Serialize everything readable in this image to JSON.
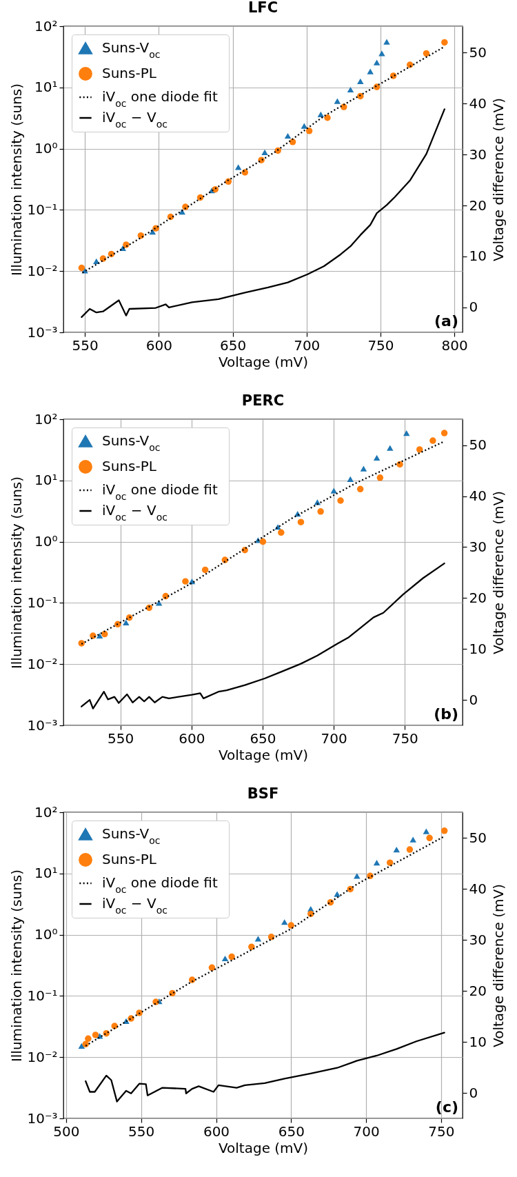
{
  "chart_data": [
    {
      "type": "scatter",
      "title": "LFC",
      "xlabel": "Voltage (mV)",
      "ylabel": "Illumination intensity (suns)",
      "y2label": "Voltage difference (mV)",
      "annotations": [
        "(a)"
      ],
      "log": "y",
      "grid": true,
      "legend": "top left",
      "xlim": [
        535.5,
        805.5
      ],
      "xticks": [
        550,
        600,
        650,
        700,
        750,
        800
      ],
      "ylim": [
        0.001,
        100
      ],
      "yticks": [
        {
          "value": 0.001,
          "label": "10⁻³"
        },
        {
          "value": 0.01,
          "label": "10⁻²"
        },
        {
          "value": 0.1,
          "label": "10⁻¹"
        },
        {
          "value": 1,
          "label": "10⁰"
        },
        {
          "value": 10,
          "label": "10¹"
        },
        {
          "value": 100,
          "label": "10²"
        }
      ],
      "y2lim": [
        -4.9,
        55.2
      ],
      "y2ticks": [
        0,
        10,
        20,
        30,
        40,
        50
      ],
      "series": [
        {
          "name": "Suns-V$_{oc}$",
          "type": "scatter",
          "marker": "triangle",
          "color": "#1f77b4",
          "x": [
            550,
            557.8,
            575.7,
            595.8,
            615.8,
            635.9,
            653.8,
            671.7,
            687.3,
            698.4,
            709.6,
            720.8,
            729.7,
            736.4,
            743.1,
            747.5,
            750.9,
            754.2
          ],
          "values": [
            0.0102,
            0.0145,
            0.0237,
            0.044,
            0.093,
            0.208,
            0.5,
            0.87,
            1.62,
            2.35,
            3.63,
            5.97,
            9.2,
            12.6,
            18.2,
            25.5,
            36,
            55.7
          ]
        },
        {
          "name": "Suns-PL",
          "type": "scatter",
          "marker": "circle",
          "color": "#ff7f0e",
          "x": [
            547.8,
            562.3,
            567.9,
            577.9,
            587.9,
            598,
            608,
            618,
            628.1,
            638.2,
            647.1,
            658.3,
            669.4,
            680.6,
            690.6,
            701.8,
            714.1,
            725.2,
            736.4,
            747.5,
            758.7,
            769.9,
            781,
            793.3
          ],
          "values": [
            0.0113,
            0.016,
            0.019,
            0.027,
            0.038,
            0.05,
            0.077,
            0.112,
            0.159,
            0.216,
            0.29,
            0.41,
            0.65,
            0.93,
            1.29,
            1.95,
            3.2,
            4.8,
            7.2,
            10.2,
            15.5,
            23.4,
            36,
            54.5
          ]
        },
        {
          "name": "iV$_{oc}$ one diode fit",
          "type": "line",
          "line_style": "dotted",
          "color": "#000000",
          "x": [
            548.4,
            589.1,
            644.9,
            678.3,
            711.8,
            756.5,
            793.3
          ],
          "values": [
            0.0094,
            0.0366,
            0.284,
            0.87,
            3.41,
            14.2,
            46.4
          ]
        },
        {
          "name": "iV$_{oc}$ − V$_{oc}$",
          "type": "line",
          "line_style": "solid",
          "axis": "y2",
          "color": "#000000",
          "x": [
            547.8,
            553.3,
            557.8,
            562.3,
            573,
            577.9,
            580.1,
            598,
            604.7,
            606.9,
            622.5,
            640.4,
            658.3,
            673.9,
            687.3,
            700.7,
            711.8,
            723,
            729.7,
            736.4,
            743.1,
            747.5,
            754.2,
            759.8,
            769.9,
            781,
            793.3
          ],
          "values": [
            -1.9,
            -0.3,
            -1.0,
            -0.8,
            1.4,
            -1.6,
            -0.3,
            -0.1,
            0.6,
            0,
            1.0,
            1.6,
            2.9,
            3.9,
            4.9,
            6.5,
            8.1,
            10.4,
            12.0,
            14.2,
            16.2,
            18.5,
            20.1,
            21.7,
            24.9,
            30.1,
            38.9
          ]
        }
      ]
    },
    {
      "type": "scatter",
      "title": "PERC",
      "xlabel": "Voltage (mV)",
      "ylabel": "Illumination intensity (suns)",
      "y2label": "Voltage difference (mV)",
      "annotations": [
        "(b)"
      ],
      "log": "y",
      "grid": true,
      "legend": "top left",
      "xlim": [
        509.9,
        790.6
      ],
      "xticks": [
        550,
        600,
        650,
        700,
        750
      ],
      "ylim": [
        0.001,
        100
      ],
      "yticks": [
        {
          "value": 0.001,
          "label": "10⁻³"
        },
        {
          "value": 0.01,
          "label": "10⁻²"
        },
        {
          "value": 0.1,
          "label": "10⁻¹"
        },
        {
          "value": 1,
          "label": "10⁰"
        },
        {
          "value": 10,
          "label": "10¹"
        },
        {
          "value": 100,
          "label": "10²"
        }
      ],
      "y2lim": [
        -5,
        55.1
      ],
      "y2ticks": [
        0,
        10,
        20,
        30,
        40,
        50
      ],
      "series": [
        {
          "name": "Suns-V$_{oc}$",
          "type": "scatter",
          "marker": "triangle",
          "color": "#1f77b4",
          "x": [
            535.4,
            553.9,
            577.1,
            600.3,
            623.5,
            646.8,
            660.7,
            674.6,
            688.5,
            700.1,
            711.7,
            721,
            730.3,
            739.6,
            751.2
          ],
          "values": [
            0.0291,
            0.0477,
            0.1,
            0.225,
            null,
            1.06,
            1.74,
            2.85,
            4.4,
            6.8,
            10.5,
            15.6,
            23.5,
            34,
            59.4
          ]
        },
        {
          "name": "Suns-PL",
          "type": "scatter",
          "marker": "circle",
          "color": "#ff7f0e",
          "x": [
            522.6,
            530.7,
            538.9,
            548.1,
            556.3,
            570.2,
            581.8,
            595.7,
            609.6,
            623.5,
            637.5,
            650.2,
            663,
            676.9,
            690.8,
            704.8,
            718.7,
            732.6,
            746.5,
            760.4,
            769.7,
            777.8
          ],
          "values": [
            0.0219,
            0.0291,
            0.031,
            0.0449,
            0.0575,
            0.0834,
            0.129,
            0.225,
            0.347,
            0.503,
            0.73,
            1.0,
            1.41,
            2.09,
            3.11,
            4.69,
            7.23,
            11.1,
            18.3,
            32,
            44.7,
            59.4
          ]
        },
        {
          "name": "iV$_{oc}$ one diode fit",
          "type": "line",
          "line_style": "dotted",
          "color": "#000000",
          "x": [
            522.6,
            600.3,
            670,
            716.4,
            777.8
          ],
          "values": [
            0.0213,
            0.211,
            2.37,
            9.27,
            43.5
          ]
        },
        {
          "name": "iV$_{oc}$ − V$_{oc}$",
          "type": "line",
          "line_style": "solid",
          "axis": "y2",
          "color": "#000000",
          "x": [
            522.6,
            528.4,
            530.7,
            538.4,
            541.2,
            545.8,
            548.8,
            554.6,
            558.6,
            563.2,
            566.7,
            570.2,
            574.1,
            579.5,
            584.1,
            600.3,
            606.1,
            608.4,
            618.9,
            624.7,
            637.5,
            651.4,
            663,
            676.9,
            688.5,
            702.4,
            710.6,
            716.4,
            728,
            734.9,
            748.8,
            762.8,
            777.8
          ],
          "values": [
            -1.3,
            0,
            -1.7,
            1.6,
            0.1,
            0.6,
            -0.6,
            1.1,
            -0.5,
            0.6,
            -0.3,
            0.6,
            -0.5,
            0.6,
            0.3,
            1.0,
            1.3,
            0.3,
            1.6,
            1.9,
            2.9,
            4.2,
            5.5,
            7.1,
            8.7,
            11.0,
            12.3,
            13.6,
            16.2,
            17.1,
            20.7,
            23.9,
            26.8
          ]
        }
      ]
    },
    {
      "type": "scatter",
      "title": "BSF",
      "xlabel": "Voltage (mV)",
      "ylabel": "Illumination intensity (suns)",
      "y2label": "Voltage difference (mV)",
      "annotations": [
        "(c)"
      ],
      "log": "y",
      "grid": true,
      "legend": "top left",
      "xlim": [
        498.2,
        764.3
      ],
      "xticks": [
        500,
        550,
        600,
        650,
        700,
        750
      ],
      "ylim": [
        0.001,
        100
      ],
      "yticks": [
        {
          "value": 0.001,
          "label": "10⁻³"
        },
        {
          "value": 0.01,
          "label": "10⁻²"
        },
        {
          "value": 0.1,
          "label": "10⁻¹"
        },
        {
          "value": 1,
          "label": "10⁰"
        },
        {
          "value": 10,
          "label": "10¹"
        },
        {
          "value": 100,
          "label": "10²"
        }
      ],
      "y2lim": [
        -5,
        55
      ],
      "y2ticks": [
        0,
        10,
        20,
        30,
        40,
        50
      ],
      "series": [
        {
          "name": "Suns-V$_{oc}$",
          "type": "scatter",
          "marker": "triangle",
          "color": "#1f77b4",
          "x": [
            510.3,
            522.4,
            540,
            562,
            584,
            606,
            628,
            645.6,
            663.1,
            680.7,
            693.9,
            707.1,
            720.3,
            731.3,
            740.1
          ],
          "values": [
            0.0153,
            0.0222,
            0.0388,
            0.0818,
            null,
            0.41,
            0.863,
            1.61,
            2.64,
            4.61,
            9.12,
            15.0,
            24.6,
            35.7,
            48.8
          ]
        },
        {
          "name": "Suns-PL",
          "type": "scatter",
          "marker": "circle",
          "color": "#ff7f0e",
          "x": [
            513,
            514.7,
            519.6,
            526.8,
            532.3,
            543.3,
            548.8,
            559.8,
            570.8,
            584,
            597.2,
            610.4,
            623.6,
            636.8,
            650,
            663.1,
            676.3,
            689.5,
            702.7,
            715.9,
            729.1,
            742.3,
            752.2
          ],
          "values": [
            0.0163,
            0.0201,
            0.0231,
            0.0245,
            0.0323,
            0.0429,
            0.053,
            0.0798,
            0.111,
            0.183,
            0.29,
            0.436,
            0.634,
            0.919,
            1.42,
            2.19,
            3.38,
            5.55,
            9.12,
            15.0,
            24.6,
            38,
            49.9
          ]
        },
        {
          "name": "iV$_{oc}$ one diode fit",
          "type": "line",
          "line_style": "dotted",
          "color": "#000000",
          "x": [
            513,
            584,
            650,
            693.9,
            752.2
          ],
          "values": [
            0.0153,
            0.172,
            1.25,
            6.68,
            40.5
          ]
        },
        {
          "name": "iV$_{oc}$ − V$_{oc}$",
          "type": "line",
          "line_style": "solid",
          "axis": "y2",
          "color": "#000000",
          "x": [
            513,
            515.8,
            519.1,
            526.8,
            530.1,
            533.9,
            540,
            543.3,
            548.8,
            553.2,
            554.3,
            564.2,
            579.6,
            580,
            584,
            588.4,
            598.3,
            601.6,
            613.7,
            619.2,
            632.4,
            645.6,
            663.1,
            680.7,
            693.9,
            707.1,
            720.3,
            733.5,
            752.2
          ],
          "values": [
            2.3,
            0.2,
            0.2,
            3.4,
            2.5,
            -1.7,
            0.4,
            -0.1,
            1.8,
            1.7,
            -0.5,
            1.0,
            0.8,
            -0.1,
            0.8,
            1.3,
            0.2,
            1.5,
            1.0,
            1.5,
            1.9,
            2.8,
            3.8,
            4.9,
            6.3,
            7.3,
            8.6,
            10.1,
            11.8
          ]
        }
      ]
    }
  ]
}
